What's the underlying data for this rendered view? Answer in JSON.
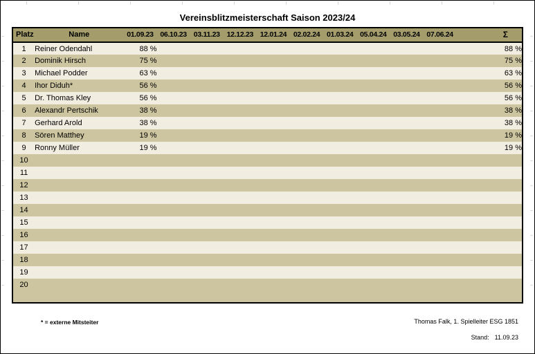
{
  "page": {
    "title": "Vereinsblitzmeisterschaft Saison 2023/24"
  },
  "table": {
    "header": {
      "platz": "Platz",
      "name": "Name",
      "dates": [
        "01.09.23",
        "06.10.23",
        "03.11.23",
        "12.12.23",
        "12.01.24",
        "02.02.24",
        "01.03.24",
        "05.04.24",
        "03.05.24",
        "07.06.24"
      ],
      "sum": "Σ"
    },
    "rows": [
      {
        "platz": "1",
        "name": "Reiner Odendahl",
        "rounds": [
          "88 %"
        ],
        "sum": "88 %"
      },
      {
        "platz": "2",
        "name": "Dominik Hirsch",
        "rounds": [
          "75 %"
        ],
        "sum": "75 %"
      },
      {
        "platz": "3",
        "name": "Michael Podder",
        "rounds": [
          "63 %"
        ],
        "sum": "63 %"
      },
      {
        "platz": "4",
        "name": "Ihor Diduh*",
        "rounds": [
          "56 %"
        ],
        "sum": "56 %"
      },
      {
        "platz": "5",
        "name": "Dr. Thomas Kley",
        "rounds": [
          "56 %"
        ],
        "sum": "56 %"
      },
      {
        "platz": "6",
        "name": "Alexandr Pertschik",
        "rounds": [
          "38 %"
        ],
        "sum": "38 %"
      },
      {
        "platz": "7",
        "name": "Gerhard Arold",
        "rounds": [
          "38 %"
        ],
        "sum": "38 %"
      },
      {
        "platz": "8",
        "name": "Sören Matthey",
        "rounds": [
          "19 %"
        ],
        "sum": "19 %"
      },
      {
        "platz": "9",
        "name": "Ronny Müller",
        "rounds": [
          "19 %"
        ],
        "sum": "19 %"
      },
      {
        "platz": "10",
        "name": "",
        "rounds": [],
        "sum": ""
      },
      {
        "platz": "11",
        "name": "",
        "rounds": [],
        "sum": ""
      },
      {
        "platz": "12",
        "name": "",
        "rounds": [],
        "sum": ""
      },
      {
        "platz": "13",
        "name": "",
        "rounds": [],
        "sum": ""
      },
      {
        "platz": "14",
        "name": "",
        "rounds": [],
        "sum": ""
      },
      {
        "platz": "15",
        "name": "",
        "rounds": [],
        "sum": ""
      },
      {
        "platz": "16",
        "name": "",
        "rounds": [],
        "sum": ""
      },
      {
        "platz": "17",
        "name": "",
        "rounds": [],
        "sum": ""
      },
      {
        "platz": "18",
        "name": "",
        "rounds": [],
        "sum": ""
      },
      {
        "platz": "19",
        "name": "",
        "rounds": [],
        "sum": ""
      },
      {
        "platz": "20",
        "name": "",
        "rounds": [],
        "sum": ""
      }
    ]
  },
  "footer": {
    "note": "* = externe Mitsteiter",
    "signature": "Thomas Falk, 1. Spielleiter ESG 1851",
    "stand_label": "Stand:",
    "stand_date": "11.09.23"
  },
  "colors": {
    "header_bg": "#a49c6a",
    "row_tan": "#cdc5a0",
    "row_cream": "#f1ede0",
    "table_border": "#000000"
  }
}
